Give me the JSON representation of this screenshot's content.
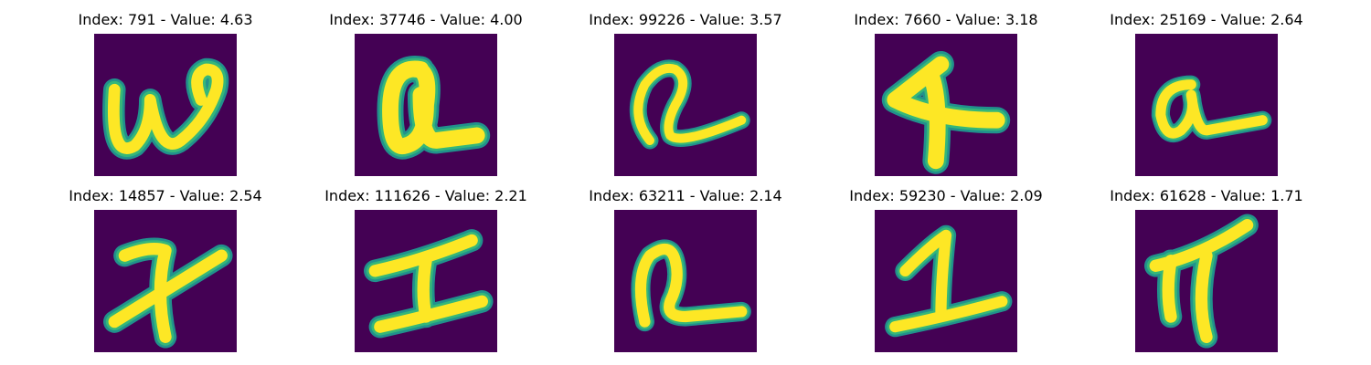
{
  "colors": {
    "background": "#440154",
    "stroke_core": "#fde725",
    "stroke_edge": "#35b779",
    "stroke_halo": "#21918c"
  },
  "panels": [
    {
      "title": "Index: 791 - Value: 4.63",
      "glyph": "w-icon"
    },
    {
      "title": "Index: 37746 - Value: 4.00",
      "glyph": "a-icon"
    },
    {
      "title": "Index: 99226 - Value: 3.57",
      "glyph": "a-loop-icon"
    },
    {
      "title": "Index: 7660 - Value: 3.18",
      "glyph": "four-icon"
    },
    {
      "title": "Index: 25169 - Value: 2.64",
      "glyph": "a-icon"
    },
    {
      "title": "Index: 14857 - Value: 2.54",
      "glyph": "seven-crossed-icon"
    },
    {
      "title": "Index: 111626 - Value: 2.21",
      "glyph": "i-serif-icon"
    },
    {
      "title": "Index: 63211 - Value: 2.14",
      "glyph": "a-loop-icon"
    },
    {
      "title": "Index: 59230 - Value: 2.09",
      "glyph": "two-icon"
    },
    {
      "title": "Index: 61628 - Value: 1.71",
      "glyph": "pi-icon"
    }
  ]
}
